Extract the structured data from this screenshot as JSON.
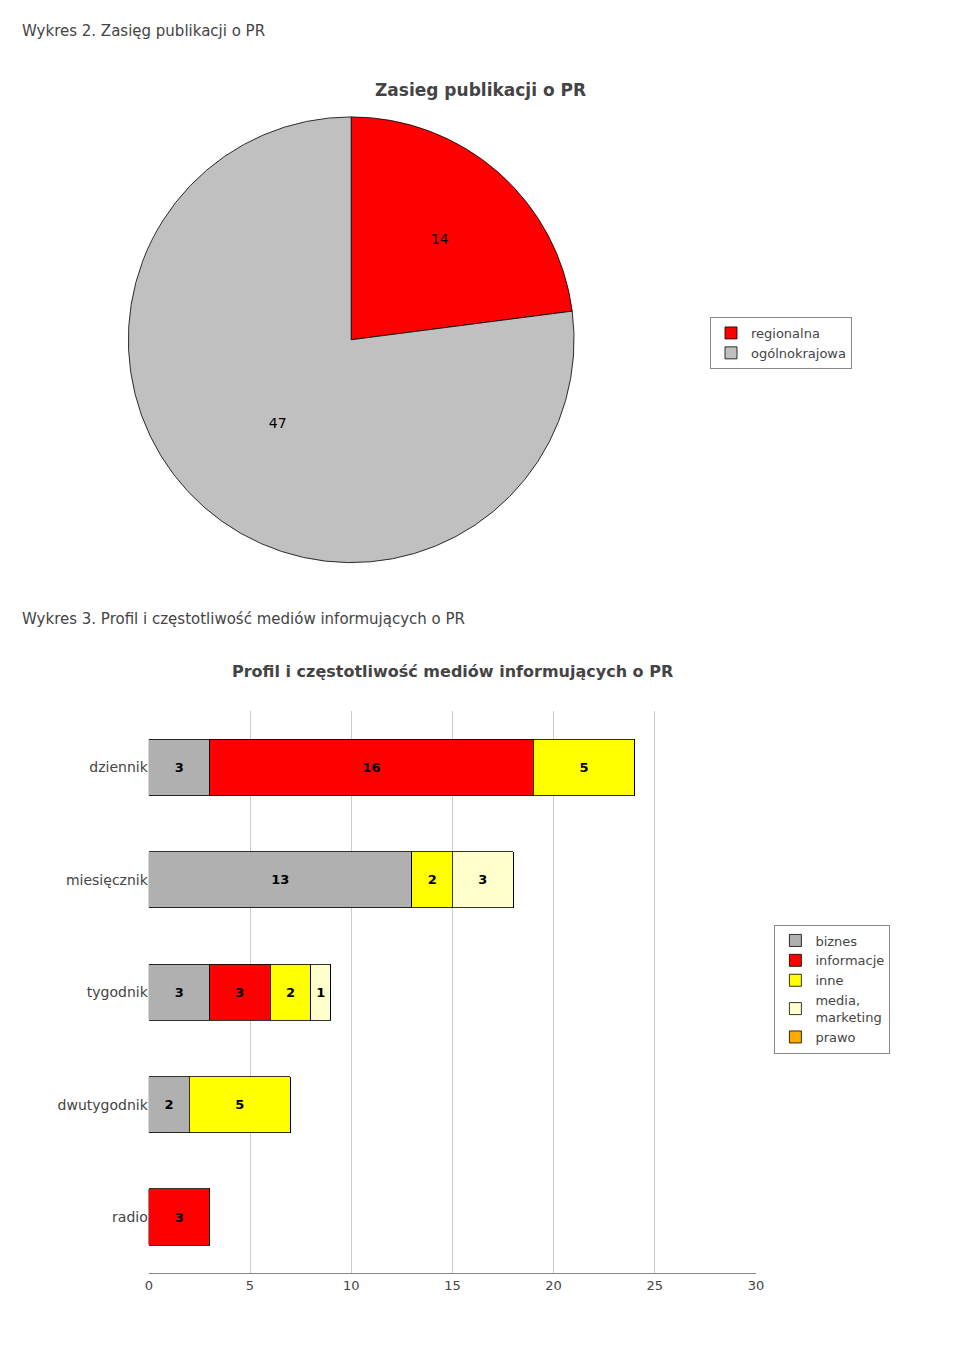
{
  "chart_data": [
    {
      "type": "pie",
      "title": "Zasieg publikacji o PR",
      "annotations": [
        "Wykres 2. Zasięg publikacji o PR"
      ],
      "categories": [
        "regionalna",
        "ogólnokrajowa"
      ],
      "values": [
        14,
        47
      ],
      "colors": [
        "#ff0000",
        "#c0c0c0"
      ],
      "data_labels": true,
      "legend": "right"
    },
    {
      "type": "bar",
      "orientation": "horizontal",
      "stacked": true,
      "title": "Profil i częstotliwość mediów informujących o PR",
      "annotations": [
        "Wykres 3. Profil i częstotliwość mediów informujących o PR"
      ],
      "categories": [
        "dziennik",
        "miesięcznik",
        "tygodnik",
        "dwutygodnik",
        "radio"
      ],
      "series": [
        {
          "name": "biznes",
          "color": "#b0b0b0",
          "values": [
            3,
            13,
            3,
            2,
            0
          ]
        },
        {
          "name": "informacje",
          "color": "#ff0000",
          "values": [
            16,
            0,
            3,
            0,
            3
          ]
        },
        {
          "name": "inne",
          "color": "#ffff00",
          "values": [
            5,
            2,
            2,
            5,
            0
          ]
        },
        {
          "name": "media,\nmarketing",
          "color": "#ffffcc",
          "values": [
            0,
            3,
            1,
            0,
            0
          ]
        },
        {
          "name": "prawo",
          "color": "#ffaa00",
          "values": [
            0,
            0,
            0,
            0,
            0
          ]
        }
      ],
      "xlim": [
        0,
        30
      ],
      "xticks": [
        0,
        5,
        10,
        15,
        20,
        25,
        30
      ],
      "grid": true,
      "data_labels": true,
      "legend": "right"
    }
  ]
}
